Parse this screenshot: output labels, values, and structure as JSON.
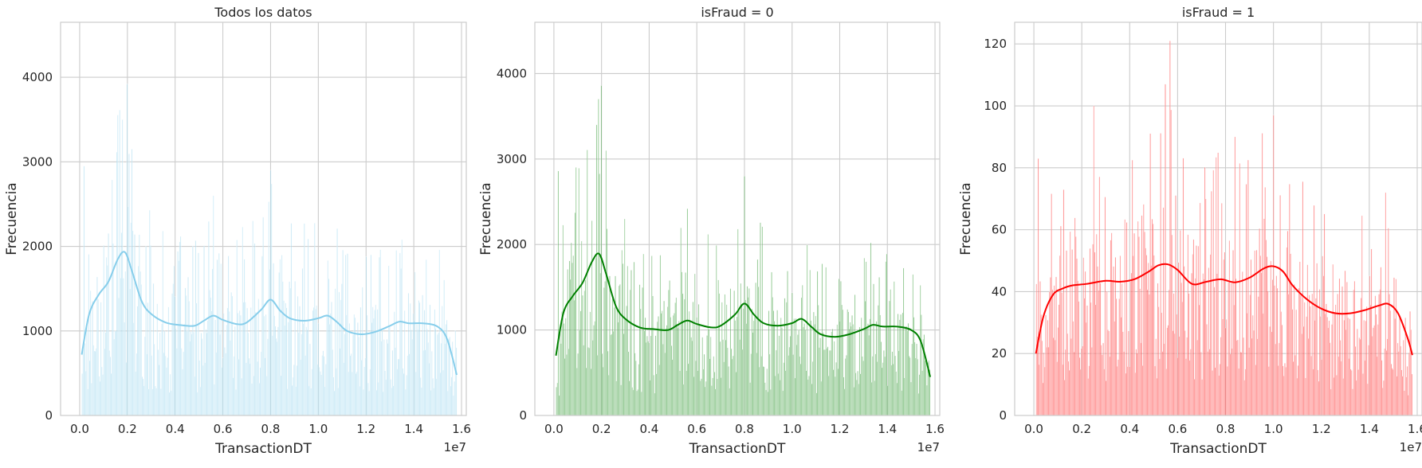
{
  "chart_data": [
    {
      "type": "histogram",
      "title": "Todos los datos",
      "xlabel": "TransactionDT",
      "ylabel": "Frecuencia",
      "x_offset_label": "1e7",
      "xlim": [
        -0.08,
        1.62
      ],
      "ylim": [
        0,
        4650
      ],
      "xticks": [
        0.0,
        0.2,
        0.4,
        0.6,
        0.8,
        1.0,
        1.2,
        1.4,
        1.6
      ],
      "xtick_labels": [
        "0.0",
        "0.2",
        "0.4",
        "0.6",
        "0.8",
        "1.0",
        "1.2",
        "1.4",
        "1.6"
      ],
      "yticks": [
        0,
        1000,
        2000,
        3000,
        4000
      ],
      "ytick_labels": [
        "0",
        "1000",
        "2000",
        "3000",
        "4000"
      ],
      "bar_color": "#87ceeb",
      "kde_color": "#87ceeb",
      "bin_range": [
        0.0086,
        1.58
      ],
      "bin_count": 400,
      "peaks": [
        [
          0.02,
          2950
        ],
        [
          0.18,
          3500
        ],
        [
          0.2,
          3920
        ],
        [
          0.22,
          3150
        ],
        [
          0.56,
          2600
        ],
        [
          0.8,
          2900
        ],
        [
          1.35,
          2080
        ]
      ],
      "kde": {
        "x": [
          0.0086,
          0.04,
          0.08,
          0.12,
          0.16,
          0.19,
          0.22,
          0.26,
          0.3,
          0.36,
          0.42,
          0.48,
          0.52,
          0.56,
          0.6,
          0.66,
          0.7,
          0.76,
          0.8,
          0.84,
          0.88,
          0.94,
          1.0,
          1.04,
          1.08,
          1.12,
          1.18,
          1.24,
          1.3,
          1.34,
          1.38,
          1.44,
          1.5,
          1.54,
          1.58
        ],
        "y": [
          720,
          1200,
          1430,
          1580,
          1850,
          1930,
          1700,
          1350,
          1200,
          1100,
          1070,
          1060,
          1120,
          1180,
          1130,
          1080,
          1100,
          1250,
          1370,
          1240,
          1150,
          1120,
          1150,
          1180,
          1100,
          1000,
          960,
          990,
          1060,
          1110,
          1090,
          1090,
          1050,
          900,
          480
        ]
      }
    },
    {
      "type": "histogram",
      "title": "isFraud = 0",
      "xlabel": "TransactionDT",
      "ylabel": "Frecuencia",
      "x_offset_label": "1e7",
      "xlim": [
        -0.08,
        1.62
      ],
      "ylim": [
        0,
        4600
      ],
      "xticks": [
        0.0,
        0.2,
        0.4,
        0.6,
        0.8,
        1.0,
        1.2,
        1.4,
        1.6
      ],
      "xtick_labels": [
        "0.0",
        "0.2",
        "0.4",
        "0.6",
        "0.8",
        "1.0",
        "1.2",
        "1.4",
        "1.6"
      ],
      "yticks": [
        0,
        1000,
        2000,
        3000,
        4000
      ],
      "ytick_labels": [
        "0",
        "1000",
        "2000",
        "3000",
        "4000"
      ],
      "bar_color": "#008000",
      "kde_color": "#008000",
      "bin_range": [
        0.0086,
        1.58
      ],
      "bin_count": 400,
      "peaks": [
        [
          0.02,
          2860
        ],
        [
          0.18,
          3400
        ],
        [
          0.2,
          3860
        ],
        [
          0.22,
          3100
        ],
        [
          0.56,
          2420
        ],
        [
          0.8,
          2800
        ],
        [
          1.33,
          2020
        ]
      ],
      "kde": {
        "x": [
          0.0086,
          0.04,
          0.08,
          0.12,
          0.16,
          0.19,
          0.22,
          0.26,
          0.3,
          0.36,
          0.42,
          0.48,
          0.52,
          0.56,
          0.6,
          0.66,
          0.7,
          0.76,
          0.8,
          0.84,
          0.88,
          0.94,
          1.0,
          1.04,
          1.08,
          1.12,
          1.18,
          1.24,
          1.3,
          1.34,
          1.38,
          1.44,
          1.5,
          1.54,
          1.58
        ],
        "y": [
          700,
          1200,
          1400,
          1550,
          1800,
          1890,
          1650,
          1280,
          1130,
          1030,
          1010,
          1000,
          1060,
          1110,
          1070,
          1030,
          1050,
          1180,
          1310,
          1180,
          1080,
          1050,
          1080,
          1130,
          1040,
          950,
          920,
          950,
          1010,
          1060,
          1040,
          1040,
          1000,
          870,
          450
        ]
      }
    },
    {
      "type": "histogram",
      "title": "isFraud = 1",
      "xlabel": "TransactionDT",
      "ylabel": "Frecuencia",
      "x_offset_label": "1e7",
      "xlim": [
        -0.08,
        1.62
      ],
      "ylim": [
        0,
        127
      ],
      "xticks": [
        0.0,
        0.2,
        0.4,
        0.6,
        0.8,
        1.0,
        1.2,
        1.4,
        1.6
      ],
      "xtick_labels": [
        "0.0",
        "0.2",
        "0.4",
        "0.6",
        "0.8",
        "1.0",
        "1.2",
        "1.4",
        "1.6"
      ],
      "yticks": [
        0,
        20,
        40,
        60,
        80,
        100,
        120
      ],
      "ytick_labels": [
        "0",
        "20",
        "40",
        "60",
        "80",
        "100",
        "120"
      ],
      "bar_color": "#ff0000",
      "kde_color": "#ff0000",
      "bin_range": [
        0.0086,
        1.58
      ],
      "bin_count": 400,
      "peaks": [
        [
          0.02,
          83
        ],
        [
          0.25,
          100
        ],
        [
          0.55,
          107
        ],
        [
          0.57,
          121
        ],
        [
          0.84,
          90
        ],
        [
          1.0,
          97
        ],
        [
          1.47,
          72
        ]
      ],
      "kde": {
        "x": [
          0.0086,
          0.04,
          0.08,
          0.12,
          0.16,
          0.22,
          0.3,
          0.36,
          0.42,
          0.48,
          0.52,
          0.56,
          0.6,
          0.66,
          0.72,
          0.78,
          0.84,
          0.9,
          0.96,
          1.0,
          1.04,
          1.08,
          1.14,
          1.2,
          1.26,
          1.32,
          1.38,
          1.44,
          1.48,
          1.52,
          1.56,
          1.58
        ],
        "y": [
          20,
          32,
          39,
          41,
          42,
          42.5,
          43.5,
          43.2,
          44,
          46.5,
          48.5,
          48.8,
          47,
          42.5,
          43.2,
          44,
          43,
          44.5,
          47.5,
          48.2,
          46.5,
          42,
          37.5,
          34.5,
          33,
          33,
          34,
          35.5,
          36,
          33,
          25,
          19.5
        ]
      }
    }
  ]
}
